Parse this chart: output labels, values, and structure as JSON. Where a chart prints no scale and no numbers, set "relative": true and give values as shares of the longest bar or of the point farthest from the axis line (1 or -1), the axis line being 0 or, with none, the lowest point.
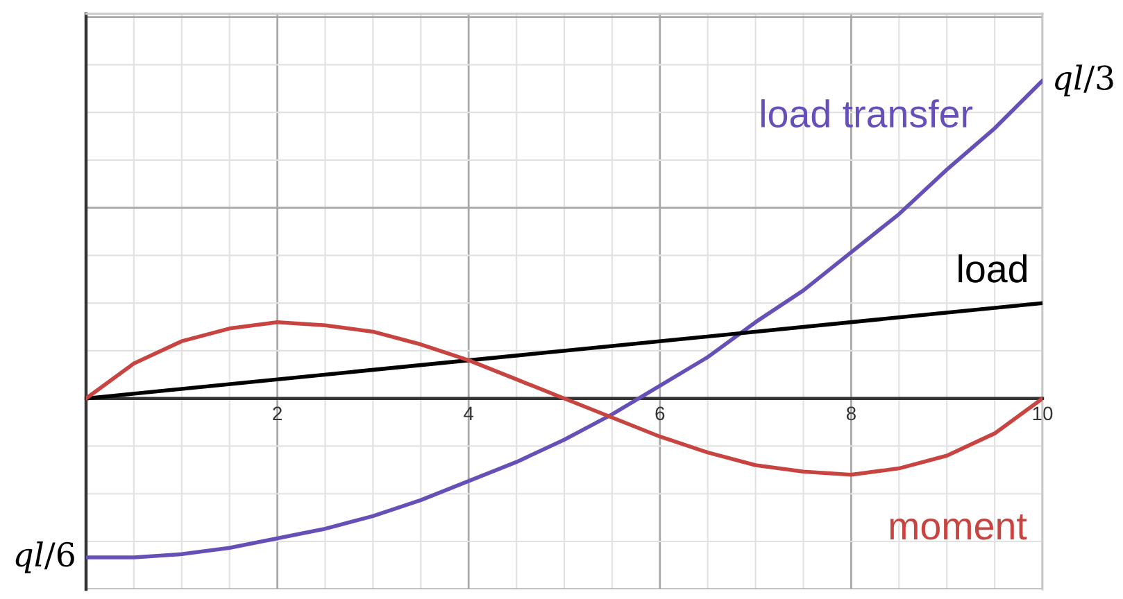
{
  "chart_data": {
    "type": "line",
    "relative": true,
    "xlim": [
      0,
      10
    ],
    "xticks": [
      2,
      4,
      6,
      8,
      10
    ],
    "grid": true,
    "line_style": "solid",
    "series": [
      {
        "name": "load transfer",
        "color": "#6650b8",
        "x": [
          0,
          0.5,
          1,
          1.5,
          2,
          2.5,
          3,
          3.5,
          4,
          4.5,
          5,
          5.5,
          6,
          6.5,
          7,
          7.5,
          8,
          8.5,
          9,
          9.5,
          10
        ],
        "values": [
          -0.5,
          -0.5,
          -0.49,
          -0.47,
          -0.44,
          -0.41,
          -0.37,
          -0.32,
          -0.26,
          -0.2,
          -0.13,
          -0.05,
          0.04,
          0.13,
          0.24,
          0.34,
          0.46,
          0.58,
          0.72,
          0.85,
          1
        ]
      },
      {
        "name": "load",
        "color": "#000000",
        "x": [
          0,
          10
        ],
        "values": [
          0,
          0.3
        ]
      },
      {
        "name": "moment",
        "color": "#c74440",
        "x": [
          0,
          0.5,
          1,
          1.5,
          2,
          2.5,
          3,
          3.5,
          4,
          4.5,
          5,
          5.5,
          6,
          6.5,
          7,
          7.5,
          8,
          8.5,
          9,
          9.5,
          10
        ],
        "values": [
          0,
          0.11,
          0.18,
          0.22,
          0.24,
          0.23,
          0.21,
          0.17,
          0.12,
          0.06,
          0,
          -0.06,
          -0.12,
          -0.17,
          -0.21,
          -0.23,
          -0.24,
          -0.22,
          -0.18,
          -0.11,
          0
        ]
      }
    ],
    "annotations": [
      {
        "text": "ql/3",
        "x": 10,
        "y": 1
      },
      {
        "text": "ql/6",
        "x": 0,
        "y": -0.5
      }
    ]
  }
}
